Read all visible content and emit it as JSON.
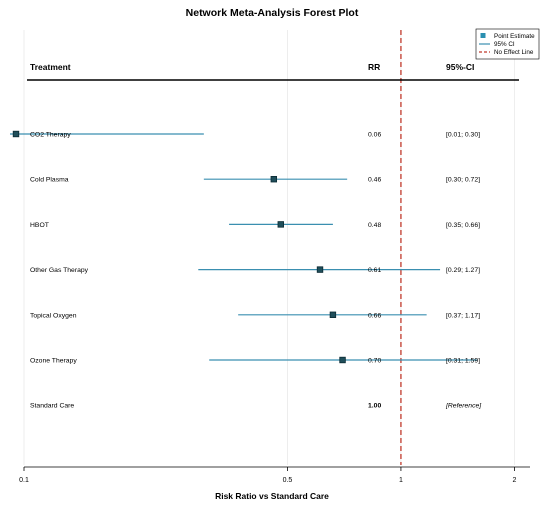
{
  "chart_data": {
    "type": "forest",
    "title": "Network Meta-Analysis Forest Plot",
    "xlabel": "Risk Ratio vs Standard Care",
    "x_scale": "log",
    "xlim": [
      0.1,
      2.2
    ],
    "x_ticks": [
      0.1,
      0.5,
      1,
      2
    ],
    "x_tick_labels": [
      "0.1",
      "0.5",
      "1",
      "2"
    ],
    "null_line_value": 1,
    "grid": true,
    "columns": {
      "treatment": "Treatment",
      "rr": "RR",
      "ci": "95%-CI"
    },
    "legend": {
      "placement": "top-right",
      "entries": [
        "Point Estimate",
        "95% CI",
        "No Effect Line"
      ]
    },
    "rows": [
      {
        "name": "CO2 Therapy",
        "rr": 0.06,
        "lo": 0.01,
        "hi": 0.3,
        "rr_label": "0.06",
        "ci_label": "[0.01; 0.30]"
      },
      {
        "name": "Cold Plasma",
        "rr": 0.46,
        "lo": 0.3,
        "hi": 0.72,
        "rr_label": "0.46",
        "ci_label": "[0.30; 0.72]"
      },
      {
        "name": "HBOT",
        "rr": 0.48,
        "lo": 0.35,
        "hi": 0.66,
        "rr_label": "0.48",
        "ci_label": "[0.35; 0.66]"
      },
      {
        "name": "Other Gas Therapy",
        "rr": 0.61,
        "lo": 0.29,
        "hi": 1.27,
        "rr_label": "0.61",
        "ci_label": "[0.29; 1.27]"
      },
      {
        "name": "Topical Oxygen",
        "rr": 0.66,
        "lo": 0.37,
        "hi": 1.17,
        "rr_label": "0.66",
        "ci_label": "[0.37; 1.17]"
      },
      {
        "name": "Ozone Therapy",
        "rr": 0.7,
        "lo": 0.31,
        "hi": 1.59,
        "rr_label": "0.70",
        "ci_label": "[0.31; 1.59]"
      },
      {
        "name": "Standard Care",
        "rr": 1.0,
        "lo": null,
        "hi": null,
        "rr_label": "1.00",
        "ci_label": "[Reference]",
        "reference": true
      }
    ],
    "colors": {
      "point": "#1f4e5a",
      "point_border": "#0b2a33",
      "ci_line": "#3a8fb0",
      "null_line": "#c0392b",
      "legend_point": "#2a8fb0"
    }
  }
}
